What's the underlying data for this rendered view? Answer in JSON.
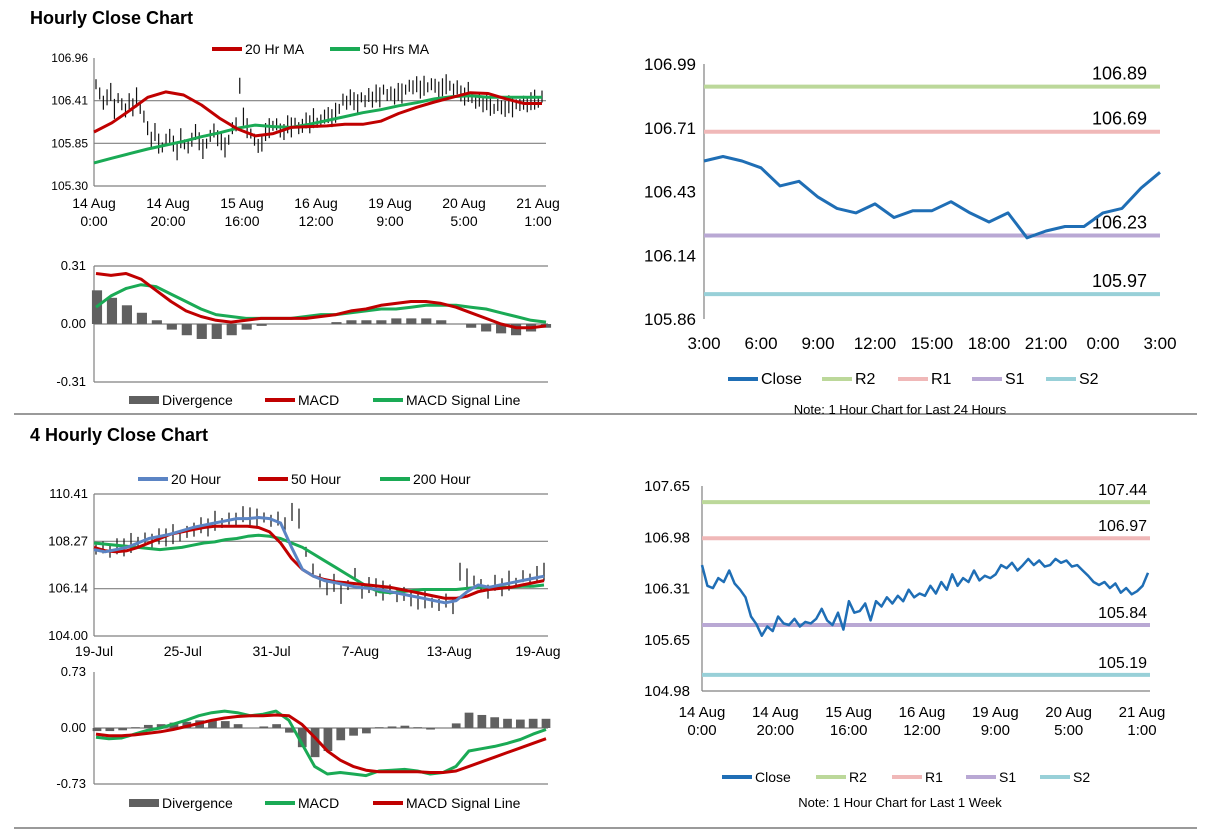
{
  "sections": {
    "hourly_title": "Hourly Close Chart",
    "four_hourly_title": "4 Hourly Close Chart"
  },
  "colors": {
    "ma_red": "#c00000",
    "ma_green": "#1aaa55",
    "ma_blue": "#5b84c4",
    "divergence": "#606060",
    "close": "#1f6eb5",
    "r2": "#bcd89a",
    "r1": "#f0b8b8",
    "s1": "#b9a8d4",
    "s2": "#98d0d8",
    "axis": "#808080"
  },
  "chart_data": [
    {
      "id": "hourly_price",
      "type": "line",
      "legend": [
        "20 Hr MA",
        "50 Hrs MA"
      ],
      "yticks": [
        "106.96",
        "106.41",
        "105.85",
        "105.30"
      ],
      "ylim": [
        105.3,
        106.96
      ],
      "xticks": [
        [
          "14 Aug",
          "0:00"
        ],
        [
          "14 Aug",
          "20:00"
        ],
        [
          "15 Aug",
          "16:00"
        ],
        [
          "16 Aug",
          "12:00"
        ],
        [
          "19 Aug",
          "9:00"
        ],
        [
          "20 Aug",
          "5:00"
        ],
        [
          "21 Aug",
          "1:00"
        ]
      ],
      "n": 122,
      "close": [
        106.62,
        106.5,
        106.38,
        106.45,
        106.52,
        106.3,
        106.44,
        106.36,
        106.28,
        106.4,
        106.32,
        106.45,
        106.3,
        106.2,
        106.05,
        105.9,
        106.0,
        105.85,
        105.8,
        105.9,
        105.95,
        105.85,
        105.75,
        105.92,
        105.84,
        105.8,
        105.9,
        106.0,
        105.88,
        105.78,
        105.85,
        105.95,
        106.02,
        105.92,
        105.88,
        105.8,
        105.9,
        106.05,
        106.1,
        106.6,
        106.2,
        106.05,
        105.98,
        105.9,
        105.82,
        105.85,
        106.0,
        106.05,
        106.08,
        106.1,
        106.02,
        106.0,
        106.1,
        106.06,
        106.12,
        106.05,
        106.08,
        106.15,
        106.1,
        106.18,
        106.12,
        106.15,
        106.2,
        106.22,
        106.18,
        106.25,
        106.3,
        106.42,
        106.38,
        106.45,
        106.4,
        106.36,
        106.45,
        106.4,
        106.48,
        106.42,
        106.5,
        106.45,
        106.55,
        106.48,
        106.5,
        106.46,
        106.52,
        106.5,
        106.55,
        106.6,
        106.58,
        106.62,
        106.55,
        106.6,
        106.58,
        106.62,
        106.6,
        106.55,
        106.58,
        106.62,
        106.6,
        106.55,
        106.58,
        106.5,
        106.46,
        106.52,
        106.44,
        106.38,
        106.42,
        106.36,
        106.4,
        106.34,
        106.3,
        106.35,
        106.32,
        106.3,
        106.36,
        106.32,
        106.36,
        106.35,
        106.38,
        106.36,
        106.4,
        106.42,
        106.38,
        106.46
      ],
      "ma20": [
        106.0,
        106.12,
        106.28,
        106.45,
        106.52,
        106.48,
        106.35,
        106.18,
        106.04,
        105.95,
        105.98,
        106.06,
        106.07,
        106.08,
        106.1,
        106.1,
        106.14,
        106.24,
        106.32,
        106.39,
        106.45,
        106.51,
        106.5,
        106.43,
        106.37,
        106.37
      ],
      "ma50": [
        105.6,
        105.66,
        105.72,
        105.78,
        105.83,
        105.88,
        105.94,
        105.99,
        106.05,
        106.09,
        106.07,
        106.06,
        106.1,
        106.15,
        106.2,
        106.25,
        106.29,
        106.34,
        106.38,
        106.43,
        106.46,
        106.47,
        106.45,
        106.45,
        106.45,
        106.45
      ]
    },
    {
      "id": "hourly_macd",
      "type": "line+bar",
      "legend": [
        "Divergence",
        "MACD",
        "MACD Signal Line"
      ],
      "yticks": [
        "0.31",
        "0.00",
        "-0.31"
      ],
      "ylim": [
        -0.31,
        0.31
      ],
      "macd": [
        0.27,
        0.26,
        0.27,
        0.24,
        0.18,
        0.12,
        0.07,
        0.04,
        0.02,
        0.01,
        0.02,
        0.03,
        0.03,
        0.03,
        0.03,
        0.04,
        0.05,
        0.07,
        0.08,
        0.1,
        0.11,
        0.12,
        0.12,
        0.11,
        0.09,
        0.06,
        0.03,
        0.0,
        -0.02,
        -0.02,
        -0.01
      ],
      "signal": [
        0.09,
        0.15,
        0.19,
        0.21,
        0.2,
        0.16,
        0.12,
        0.08,
        0.05,
        0.04,
        0.03,
        0.03,
        0.03,
        0.03,
        0.04,
        0.05,
        0.05,
        0.06,
        0.07,
        0.08,
        0.08,
        0.09,
        0.1,
        0.1,
        0.1,
        0.09,
        0.08,
        0.06,
        0.04,
        0.02,
        0.01
      ],
      "divergence": [
        0.18,
        0.14,
        0.1,
        0.06,
        0.02,
        -0.03,
        -0.06,
        -0.08,
        -0.08,
        -0.06,
        -0.03,
        -0.01,
        0.0,
        0.0,
        0.0,
        0.0,
        0.01,
        0.02,
        0.02,
        0.02,
        0.03,
        0.03,
        0.03,
        0.02,
        0.0,
        -0.02,
        -0.04,
        -0.05,
        -0.06,
        -0.04,
        -0.02
      ]
    },
    {
      "id": "hourly_24h",
      "type": "line",
      "yticks": [
        "106.99",
        "106.71",
        "106.43",
        "106.14",
        "105.86"
      ],
      "ylim": [
        105.86,
        106.99
      ],
      "xticks": [
        "3:00",
        "6:00",
        "9:00",
        "12:00",
        "15:00",
        "18:00",
        "21:00",
        "0:00",
        "3:00"
      ],
      "close": [
        106.56,
        106.58,
        106.56,
        106.53,
        106.45,
        106.47,
        106.4,
        106.35,
        106.33,
        106.37,
        106.31,
        106.34,
        106.34,
        106.38,
        106.33,
        106.29,
        106.33,
        106.22,
        106.25,
        106.27,
        106.27,
        106.33,
        106.35,
        106.44,
        106.51
      ],
      "levels": [
        {
          "key": "r2",
          "value": 106.89,
          "label": "106.89"
        },
        {
          "key": "r1",
          "value": 106.69,
          "label": "106.69"
        },
        {
          "key": "s1",
          "value": 106.23,
          "label": "106.23"
        },
        {
          "key": "s2",
          "value": 105.97,
          "label": "105.97"
        }
      ],
      "legend": [
        "Close",
        "R2",
        "R1",
        "S1",
        "S2"
      ],
      "note": "Note: 1 Hour Chart for Last 24 Hours"
    },
    {
      "id": "four_hourly_price",
      "type": "line",
      "legend": [
        "20 Hour",
        "50 Hour",
        "200 Hour"
      ],
      "yticks": [
        "110.41",
        "108.27",
        "106.14",
        "104.00"
      ],
      "ylim": [
        104.0,
        110.41
      ],
      "xticks": [
        "19-Jul",
        "25-Jul",
        "31-Jul",
        "7-Aug",
        "13-Aug",
        "19-Aug"
      ],
      "close": [
        107.9,
        108.0,
        107.85,
        108.05,
        108.0,
        108.2,
        108.25,
        108.4,
        108.3,
        108.5,
        108.45,
        108.6,
        108.5,
        108.7,
        108.8,
        109.0,
        108.9,
        109.2,
        109.1,
        109.3,
        109.25,
        109.5,
        109.4,
        109.3,
        109.35,
        109.2,
        109.3,
        109.0,
        109.6,
        109.3,
        107.8,
        107.0,
        106.5,
        106.2,
        106.4,
        105.9,
        106.3,
        106.8,
        106.0,
        106.3,
        106.2,
        106.05,
        106.1,
        105.8,
        105.9,
        105.7,
        105.6,
        105.7,
        105.5,
        105.4,
        105.6,
        105.35,
        106.9,
        106.6,
        106.5,
        106.3,
        106.0,
        106.4,
        106.2,
        106.5,
        106.4,
        106.7,
        106.5,
        106.8,
        106.9
      ],
      "ma20": [
        107.9,
        107.8,
        107.9,
        108.0,
        108.2,
        108.4,
        108.5,
        108.6,
        108.75,
        108.9,
        109.0,
        109.1,
        109.2,
        109.3,
        109.3,
        109.35,
        109.3,
        109.1,
        108.0,
        107.0,
        106.7,
        106.5,
        106.4,
        106.3,
        106.2,
        106.15,
        106.1,
        106.0,
        105.9,
        105.8,
        105.7,
        105.6,
        105.5,
        105.6,
        106.0,
        106.3,
        106.2,
        106.3,
        106.4,
        106.5,
        106.6,
        106.7
      ],
      "ma50": [
        108.0,
        107.85,
        107.8,
        107.85,
        108.0,
        108.2,
        108.4,
        108.6,
        108.7,
        108.8,
        108.9,
        108.95,
        108.95,
        108.95,
        108.95,
        108.9,
        108.7,
        108.2,
        107.5,
        107.0,
        106.7,
        106.55,
        106.45,
        106.4,
        106.35,
        106.3,
        106.25,
        106.2,
        106.1,
        106.0,
        105.9,
        105.8,
        105.7,
        105.7,
        105.8,
        106.0,
        106.1,
        106.15,
        106.2,
        106.3,
        106.4,
        106.5
      ],
      "ma200": [
        108.2,
        108.15,
        108.1,
        108.05,
        108.0,
        107.95,
        107.9,
        107.95,
        108.0,
        108.1,
        108.2,
        108.25,
        108.35,
        108.4,
        108.5,
        108.55,
        108.5,
        108.4,
        108.2,
        108.0,
        107.7,
        107.4,
        107.1,
        106.8,
        106.5,
        106.2,
        106.0,
        105.95,
        106.0,
        106.05,
        106.1,
        106.1,
        106.1,
        106.1,
        106.15,
        106.2,
        106.2,
        106.2,
        106.2,
        106.25,
        106.25,
        106.3
      ]
    },
    {
      "id": "four_hourly_macd",
      "type": "line+bar",
      "legend": [
        "Divergence",
        "MACD",
        "MACD Signal Line"
      ],
      "yticks": [
        "0.73",
        "0.00",
        "-0.73"
      ],
      "ylim": [
        -0.73,
        0.73
      ],
      "macd": [
        -0.12,
        -0.14,
        -0.13,
        -0.08,
        -0.03,
        0.0,
        0.05,
        0.1,
        0.16,
        0.2,
        0.22,
        0.2,
        0.16,
        0.18,
        0.22,
        0.1,
        -0.2,
        -0.5,
        -0.6,
        -0.58,
        -0.6,
        -0.62,
        -0.56,
        -0.55,
        -0.54,
        -0.56,
        -0.6,
        -0.58,
        -0.5,
        -0.3,
        -0.27,
        -0.24,
        -0.2,
        -0.15,
        -0.08,
        -0.02
      ],
      "signal": [
        -0.08,
        -0.1,
        -0.1,
        -0.09,
        -0.07,
        -0.05,
        -0.02,
        0.02,
        0.06,
        0.1,
        0.13,
        0.15,
        0.16,
        0.16,
        0.17,
        0.16,
        0.05,
        -0.12,
        -0.3,
        -0.42,
        -0.5,
        -0.55,
        -0.57,
        -0.57,
        -0.57,
        -0.57,
        -0.58,
        -0.58,
        -0.56,
        -0.5,
        -0.44,
        -0.38,
        -0.32,
        -0.26,
        -0.2,
        -0.14
      ],
      "divergence": [
        -0.04,
        -0.04,
        -0.03,
        0.01,
        0.04,
        0.05,
        0.07,
        0.08,
        0.1,
        0.1,
        0.09,
        0.05,
        0.0,
        0.02,
        0.05,
        -0.06,
        -0.25,
        -0.38,
        -0.3,
        -0.16,
        -0.1,
        -0.07,
        0.01,
        0.02,
        0.03,
        0.01,
        -0.02,
        0.0,
        0.06,
        0.2,
        0.17,
        0.14,
        0.12,
        0.11,
        0.12,
        0.12
      ]
    },
    {
      "id": "four_hourly_week",
      "type": "line",
      "yticks": [
        "107.65",
        "106.98",
        "106.31",
        "105.65",
        "104.98"
      ],
      "ylim": [
        104.98,
        107.65
      ],
      "xticks": [
        [
          "14 Aug",
          "0:00"
        ],
        [
          "14 Aug",
          "20:00"
        ],
        [
          "15 Aug",
          "16:00"
        ],
        [
          "16 Aug",
          "12:00"
        ],
        [
          "19 Aug",
          "9:00"
        ],
        [
          "20 Aug",
          "5:00"
        ],
        [
          "21 Aug",
          "1:00"
        ]
      ],
      "close": [
        106.62,
        106.35,
        106.32,
        106.45,
        106.4,
        106.55,
        106.38,
        106.3,
        106.2,
        105.95,
        105.85,
        105.7,
        105.82,
        105.76,
        105.95,
        105.86,
        105.84,
        105.92,
        105.82,
        105.88,
        105.86,
        105.92,
        106.05,
        105.9,
        105.84,
        106.0,
        105.78,
        106.15,
        106.0,
        106.02,
        106.12,
        105.9,
        106.15,
        106.08,
        106.2,
        106.12,
        106.22,
        106.15,
        106.3,
        106.2,
        106.25,
        106.22,
        106.35,
        106.25,
        106.4,
        106.3,
        106.5,
        106.35,
        106.45,
        106.4,
        106.55,
        106.42,
        106.48,
        106.45,
        106.5,
        106.62,
        106.58,
        106.65,
        106.55,
        106.62,
        106.7,
        106.62,
        106.68,
        106.6,
        106.62,
        106.7,
        106.65,
        106.68,
        106.6,
        106.62,
        106.55,
        106.48,
        106.4,
        106.36,
        106.4,
        106.32,
        106.38,
        106.26,
        106.32,
        106.24,
        106.28,
        106.35,
        106.52
      ],
      "levels": [
        {
          "key": "r2",
          "value": 107.44,
          "label": "107.44"
        },
        {
          "key": "r1",
          "value": 106.97,
          "label": "106.97"
        },
        {
          "key": "s1",
          "value": 105.84,
          "label": "105.84"
        },
        {
          "key": "s2",
          "value": 105.19,
          "label": "105.19"
        }
      ],
      "legend": [
        "Close",
        "R2",
        "R1",
        "S1",
        "S2"
      ],
      "note": "Note: 1 Hour Chart for Last 1 Week"
    }
  ]
}
